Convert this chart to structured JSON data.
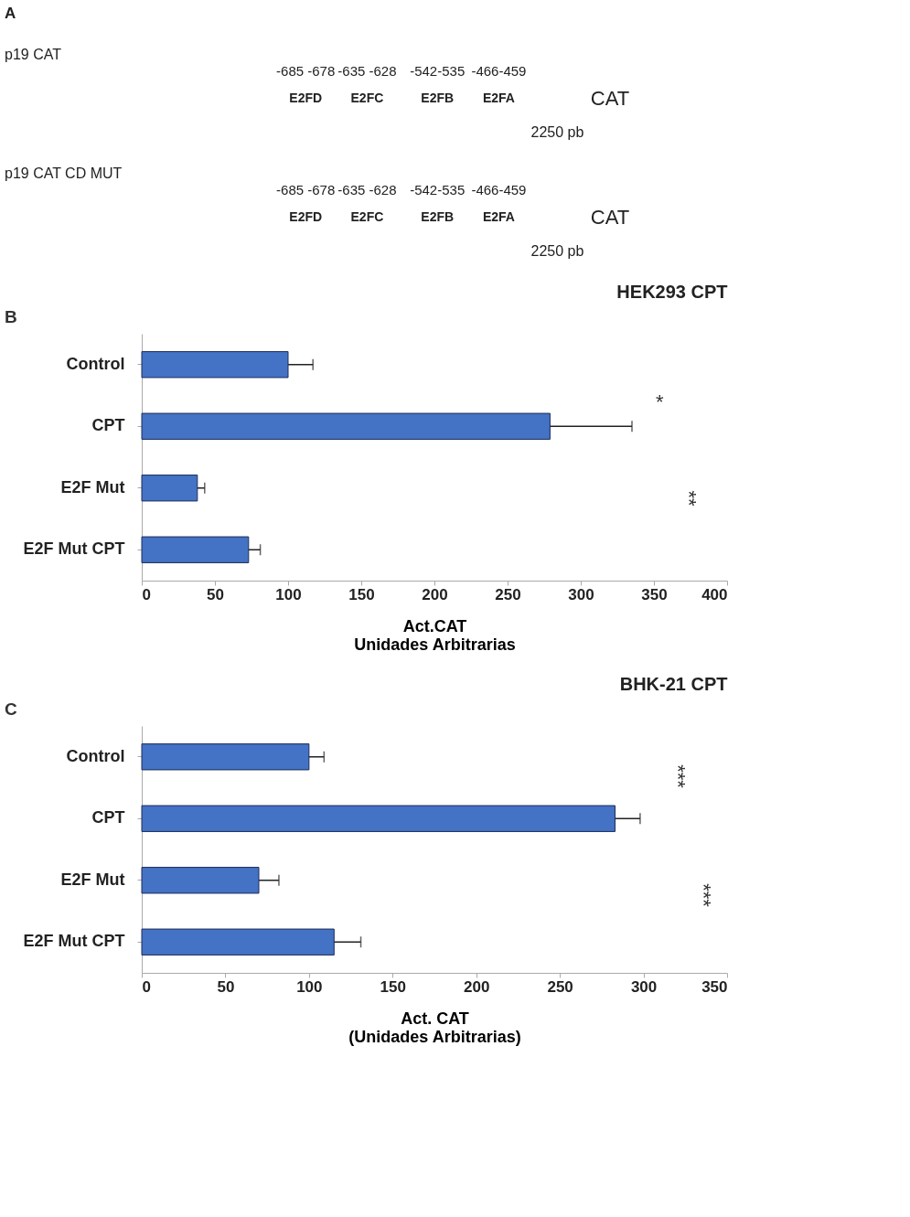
{
  "chart_data": [
    {
      "type": "other",
      "annotations": [
        "A",
        "p19 CAT",
        "-685 -678",
        "-635 -628",
        "-542-535",
        "-466-459",
        "E2FD",
        "E2FC",
        "E2FB",
        "E2FA",
        "CAT",
        "2250 pb",
        "p19 CAT CD MUT",
        "-685 -678",
        "-635 -628",
        "-542-535",
        "-466-459",
        "E2FD",
        "E2FC",
        "E2FB",
        "E2FA",
        "CAT",
        "2250 pb"
      ]
    },
    {
      "type": "bar",
      "orientation": "horizontal",
      "title": "HEK293 CPT",
      "xlabel": "Act.CAT\nUnidades Arbitrarias",
      "categories": [
        "Control",
        "CPT",
        "E2F Mut",
        "E2F Mut CPT"
      ],
      "values": [
        100,
        279,
        38,
        73
      ],
      "errors": [
        17,
        56,
        5,
        8
      ],
      "color": "#4472c4",
      "xlim": [
        0,
        400
      ],
      "xticks": [
        0,
        50,
        100,
        150,
        200,
        250,
        300,
        350,
        400
      ],
      "grid": false,
      "annotations": [
        "B",
        "*",
        "**"
      ]
    },
    {
      "type": "bar",
      "orientation": "horizontal",
      "title": "BHK-21 CPT",
      "xlabel": "Act. CAT\n(Unidades Arbitrarias)",
      "categories": [
        "Control",
        "CPT",
        "E2F Mut",
        "E2F Mut CPT"
      ],
      "values": [
        100,
        283,
        70,
        115
      ],
      "errors": [
        9,
        15,
        12,
        16
      ],
      "color": "#4472c4",
      "xlim": [
        0,
        350
      ],
      "xticks": [
        0,
        50,
        100,
        150,
        200,
        250,
        300,
        350
      ],
      "grid": false,
      "annotations": [
        "C",
        "***",
        "***"
      ]
    }
  ]
}
